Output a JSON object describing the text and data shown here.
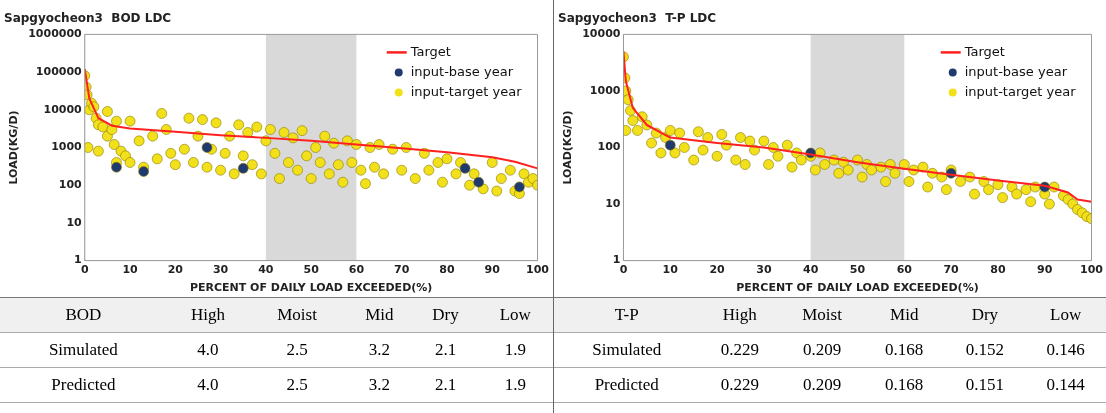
{
  "chart_data": [
    {
      "type": "scatter",
      "title": "Sapgyocheon3  BOD LDC",
      "xlabel": "PERCENT OF DAILY LOAD EXCEEDED(%)",
      "ylabel": "LOAD(KG/D)",
      "log": "y",
      "grid": false,
      "legend": "top right",
      "xlim": [
        0,
        100
      ],
      "xticks": [
        0,
        10,
        20,
        30,
        40,
        50,
        60,
        70,
        80,
        90,
        100
      ],
      "ylim": [
        1,
        1000000
      ],
      "yticks": [
        1,
        10,
        100,
        1000,
        10000,
        100000,
        1000000
      ],
      "bands": [
        {
          "axis": "x",
          "from": 40,
          "to": 60,
          "color": "#d9d9d9"
        }
      ],
      "series": [
        {
          "name": "Target",
          "type": "line",
          "marker": "none",
          "color": "#ff2020",
          "line_style": "solid",
          "x": [
            0,
            1,
            3,
            6,
            10,
            20,
            30,
            40,
            50,
            60,
            70,
            80,
            90,
            95,
            100
          ],
          "values": [
            120000,
            20000,
            6000,
            3800,
            3200,
            2600,
            2100,
            1800,
            1500,
            1200,
            950,
            750,
            550,
            420,
            280
          ]
        },
        {
          "name": "input-base year",
          "marker": "circle",
          "color": "#1f3a6e",
          "x": [
            7,
            13,
            27,
            35,
            84,
            87,
            96
          ],
          "values": [
            300,
            230,
            1000,
            280,
            280,
            120,
            90
          ]
        },
        {
          "name": "input-target year",
          "marker": "circle",
          "color": "#f2e01a",
          "x": [
            0,
            0.3,
            0.5,
            1,
            0.7,
            1.5,
            2,
            2.5,
            3,
            3,
            4,
            5,
            5,
            6,
            6.5,
            7,
            7,
            8,
            9,
            10,
            10,
            12,
            13,
            15,
            16,
            17,
            18,
            19,
            20,
            22,
            23,
            24,
            25,
            26,
            27,
            28,
            29,
            30,
            31,
            32,
            33,
            34,
            35,
            36,
            37,
            38,
            39,
            40,
            41,
            42,
            43,
            44,
            45,
            46,
            47,
            48,
            49,
            50,
            51,
            52,
            53,
            54,
            55,
            56,
            57,
            58,
            59,
            60,
            61,
            62,
            63,
            64,
            65,
            66,
            68,
            70,
            71,
            73,
            75,
            76,
            78,
            79,
            80,
            82,
            83,
            85,
            86,
            88,
            90,
            91,
            92,
            94,
            95,
            96,
            97,
            98,
            99,
            100
          ],
          "values": [
            80000,
            40000,
            25000,
            10000,
            1000,
            15000,
            12000,
            6000,
            4000,
            800,
            3500,
            9000,
            2000,
            3000,
            1200,
            5000,
            400,
            800,
            600,
            5000,
            400,
            1500,
            300,
            2000,
            500,
            8000,
            3000,
            700,
            350,
            900,
            6000,
            400,
            2000,
            5500,
            300,
            900,
            4500,
            250,
            700,
            2000,
            200,
            4000,
            600,
            2500,
            350,
            3500,
            200,
            1500,
            3000,
            700,
            150,
            2500,
            400,
            1800,
            250,
            2800,
            600,
            150,
            1000,
            400,
            2000,
            200,
            1300,
            350,
            120,
            1500,
            400,
            1200,
            250,
            110,
            1000,
            300,
            1200,
            200,
            900,
            250,
            1000,
            150,
            700,
            250,
            400,
            120,
            500,
            200,
            400,
            100,
            200,
            80,
            400,
            70,
            150,
            250,
            70,
            60,
            200,
            120,
            150,
            100
          ]
        }
      ],
      "annotations": [
        "BOD",
        "High",
        "Moist",
        "Mid",
        "Dry",
        "Low",
        "Simulated",
        "4.0",
        "2.5",
        "3.2",
        "2.1",
        "1.9",
        "Predicted",
        "4.0",
        "2.5",
        "3.2",
        "2.1",
        "1.9"
      ]
    },
    {
      "type": "scatter",
      "title": "Sapgyocheon3  T-P LDC",
      "xlabel": "PERCENT OF DAILY LOAD EXCEEDED(%)",
      "ylabel": "LOAD(KG/D)",
      "log": "y",
      "grid": false,
      "legend": "top right",
      "xlim": [
        0,
        100
      ],
      "xticks": [
        0,
        10,
        20,
        30,
        40,
        50,
        60,
        70,
        80,
        90,
        100
      ],
      "ylim": [
        1,
        10000
      ],
      "yticks": [
        1,
        10,
        100,
        1000,
        10000
      ],
      "bands": [
        {
          "axis": "x",
          "from": 40,
          "to": 60,
          "color": "#d9d9d9"
        }
      ],
      "series": [
        {
          "name": "Target",
          "type": "line",
          "marker": "none",
          "color": "#ff2020",
          "line_style": "solid",
          "x": [
            0,
            0.5,
            2,
            5,
            10,
            20,
            30,
            40,
            50,
            60,
            70,
            80,
            90,
            95,
            97,
            100
          ],
          "values": [
            5000,
            1500,
            500,
            250,
            150,
            120,
            100,
            75,
            55,
            42,
            33,
            26,
            21,
            16,
            12,
            11
          ]
        },
        {
          "name": "input-base year",
          "marker": "circle",
          "color": "#1f3a6e",
          "x": [
            10,
            40,
            70,
            90
          ],
          "values": [
            110,
            80,
            35,
            20
          ]
        },
        {
          "name": "input-target year",
          "marker": "circle",
          "color": "#f2e01a",
          "x": [
            0,
            0.3,
            0.5,
            1,
            0.5,
            1.5,
            2,
            3,
            4,
            5,
            6,
            7,
            8,
            9,
            10,
            11,
            12,
            13,
            15,
            16,
            17,
            18,
            20,
            21,
            22,
            24,
            25,
            26,
            27,
            28,
            30,
            31,
            32,
            33,
            35,
            36,
            37,
            38,
            40,
            41,
            42,
            43,
            45,
            46,
            47,
            48,
            50,
            51,
            52,
            53,
            55,
            56,
            57,
            58,
            60,
            61,
            62,
            64,
            65,
            66,
            68,
            69,
            70,
            72,
            74,
            75,
            77,
            78,
            80,
            81,
            83,
            84,
            86,
            87,
            88,
            90,
            91,
            92,
            94,
            95,
            96,
            97,
            98,
            99,
            100
          ],
          "values": [
            4000,
            1700,
            1000,
            700,
            200,
            450,
            300,
            200,
            350,
            250,
            120,
            180,
            80,
            150,
            200,
            80,
            180,
            100,
            60,
            190,
            90,
            150,
            70,
            170,
            110,
            60,
            150,
            50,
            130,
            90,
            130,
            50,
            100,
            70,
            110,
            45,
            80,
            60,
            70,
            40,
            80,
            50,
            60,
            35,
            55,
            40,
            60,
            30,
            50,
            40,
            45,
            25,
            50,
            35,
            50,
            25,
            40,
            45,
            20,
            35,
            30,
            18,
            40,
            25,
            30,
            15,
            25,
            18,
            22,
            13,
            20,
            15,
            18,
            11,
            20,
            15,
            10,
            20,
            14,
            12,
            10,
            8,
            7,
            6,
            5.5
          ]
        }
      ],
      "annotations": [
        "T-P",
        "High",
        "Moist",
        "Mid",
        "Dry",
        "Low",
        "Simulated",
        "0.229",
        "0.209",
        "0.168",
        "0.152",
        "0.146",
        "Predicted",
        "0.229",
        "0.209",
        "0.168",
        "0.151",
        "0.144"
      ]
    }
  ]
}
